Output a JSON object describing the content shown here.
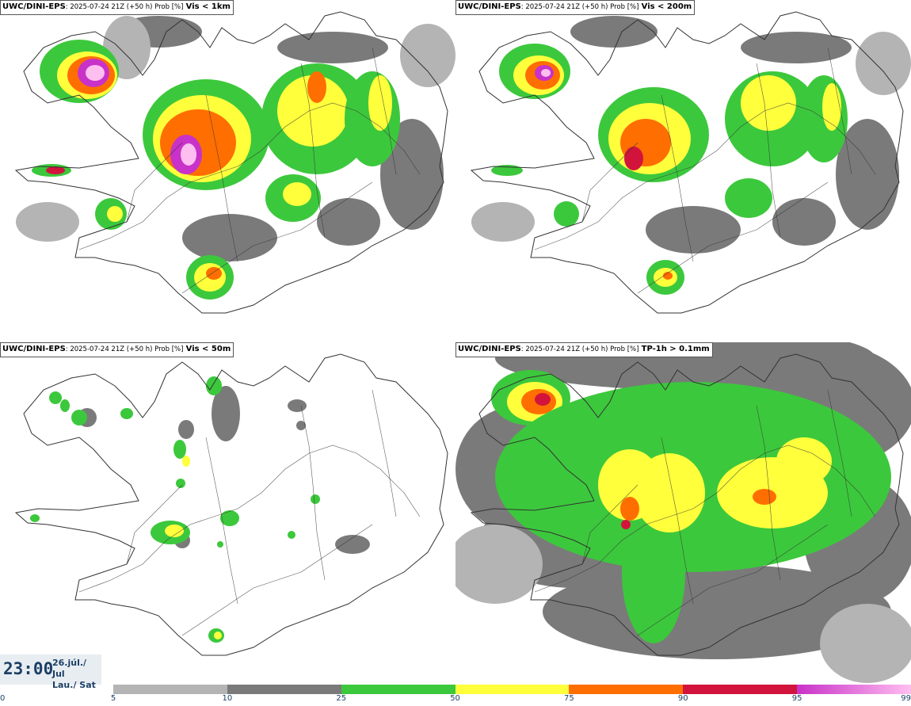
{
  "panels": [
    {
      "model": "UWC/DINI-EPS",
      "run": ": 2025-07-24 21Z (+50 h) Prob [%]",
      "variable": "Vis < 1km",
      "coverage": "high"
    },
    {
      "model": "UWC/DINI-EPS",
      "run": ": 2025-07-24 21Z (+50 h) Prob [%]",
      "variable": "Vis < 200m",
      "coverage": "medium"
    },
    {
      "model": "UWC/DINI-EPS",
      "run": ": 2025-07-24 21Z (+50 h) Prob [%]",
      "variable": "Vis < 50m",
      "coverage": "low"
    },
    {
      "model": "UWC/DINI-EPS",
      "run": ": 2025-07-24 21Z (+50 h) Prob [%]",
      "variable": "TP-1h > 0.1mm",
      "coverage": "precip"
    }
  ],
  "time": {
    "clock": "23:00",
    "date_line1": "26.júl./ Jul",
    "date_line2": "Lau./ Sat"
  },
  "colorbar": {
    "labels": [
      "0",
      "5",
      "10",
      "25",
      "50",
      "75",
      "90",
      "95",
      "99"
    ],
    "segments": [
      {
        "from": "5",
        "to": "10",
        "color": "#b4b4b4"
      },
      {
        "from": "10",
        "to": "25",
        "color": "#7a7a7a"
      },
      {
        "from": "25",
        "to": "50",
        "color": "#3cc83c"
      },
      {
        "from": "50",
        "to": "75",
        "color": "#ffff3c"
      },
      {
        "from": "75",
        "to": "90",
        "color": "#ff6e00"
      },
      {
        "from": "90",
        "to": "95",
        "color": "#d2143c"
      },
      {
        "from": "95",
        "to": "99",
        "color": "#c832c8",
        "color_end": "#ffbef0"
      }
    ]
  },
  "colors": {
    "light_grey": "#b4b4b4",
    "dark_grey": "#7a7a7a",
    "green": "#3cc83c",
    "yellow": "#ffff3c",
    "orange": "#ff6e00",
    "red": "#d2143c",
    "magenta": "#c832c8",
    "pink": "#ffbef0",
    "coast": "#333333"
  }
}
